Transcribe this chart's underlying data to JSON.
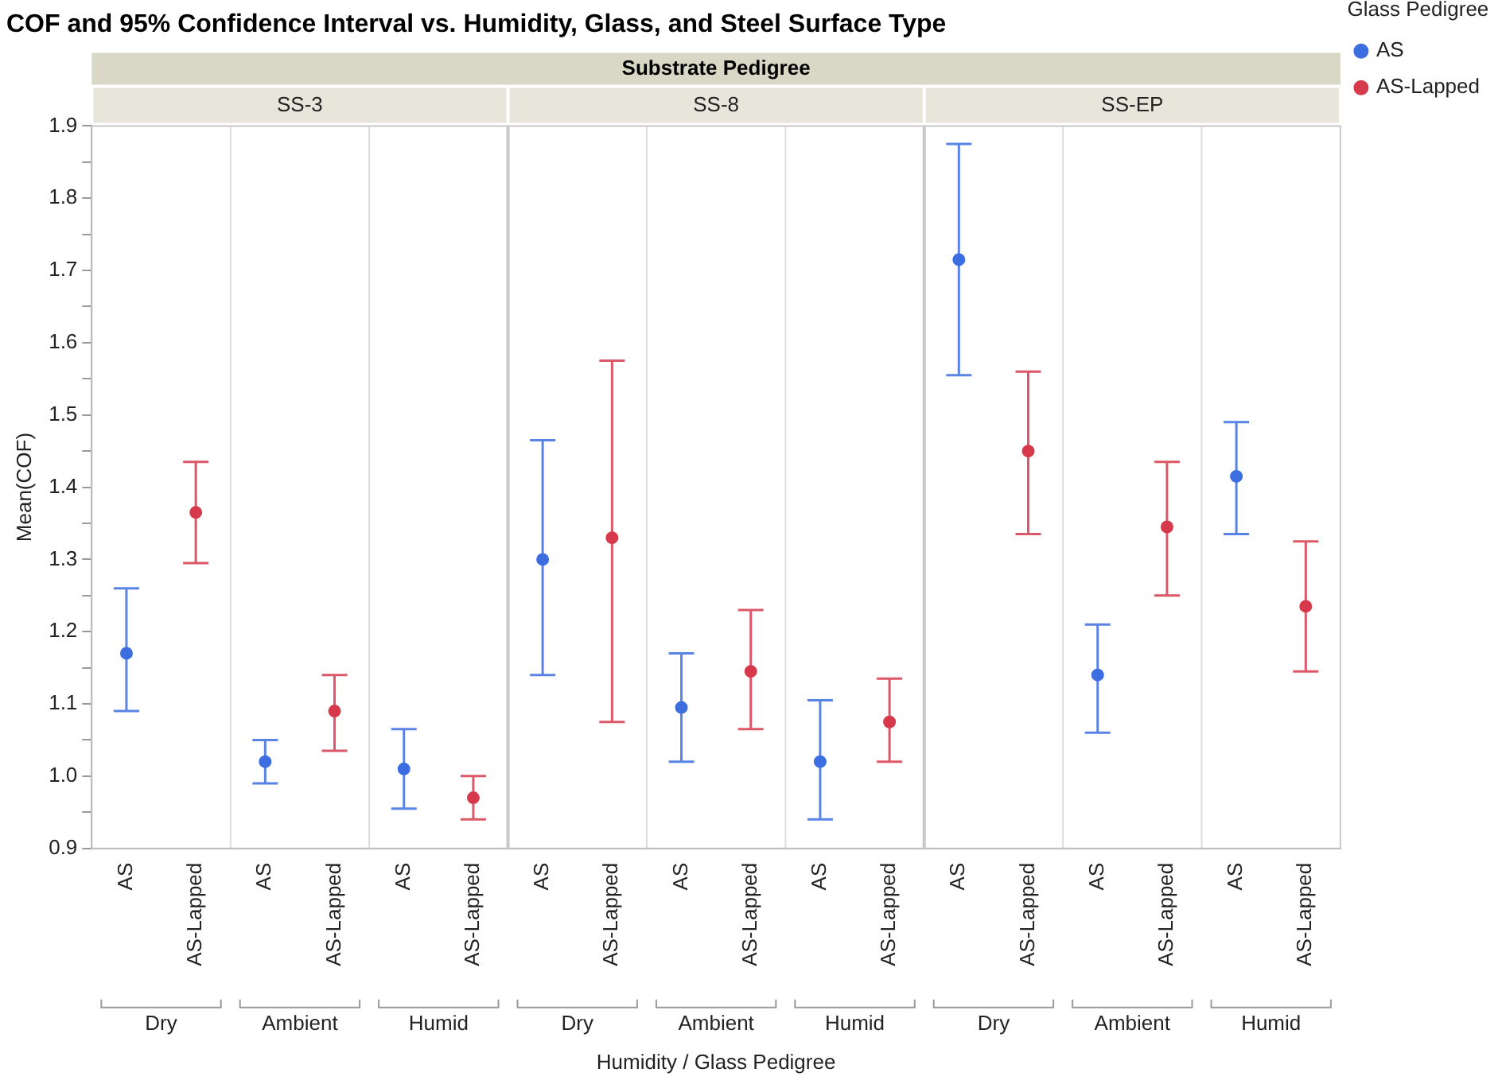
{
  "chart_data": {
    "type": "scatter",
    "title": "COF and 95% Confidence Interval vs. Humidity, Glass, and Steel Surface Type",
    "xlabel": "Humidity / Glass Pedigree",
    "ylabel": "Mean(COF)",
    "legend_title": "Glass Pedigree",
    "legend": "top right",
    "marker": "circle",
    "grid": false,
    "annotations": [
      "Substrate Pedigree",
      "SS-3",
      "SS-8",
      "SS-EP",
      "Dry",
      "Ambient",
      "Humid",
      "Dry",
      "Ambient",
      "Humid",
      "Dry",
      "Ambient",
      "Humid"
    ],
    "categories": [
      "AS",
      "AS-Lapped",
      "AS",
      "AS-Lapped",
      "AS",
      "AS-Lapped",
      "AS",
      "AS-Lapped",
      "AS",
      "AS-Lapped",
      "AS",
      "AS-Lapped",
      "AS",
      "AS-Lapped",
      "AS",
      "AS-Lapped",
      "AS",
      "AS-Lapped"
    ],
    "ylim": [
      0.9,
      1.9
    ],
    "yticks": [
      0.9,
      {
        "value": 0.95,
        "label": null
      },
      {
        "value": 1,
        "label": "1.0"
      },
      {
        "value": 1.05,
        "label": null
      },
      1.1,
      {
        "value": 1.15,
        "label": null
      },
      1.2,
      {
        "value": 1.25,
        "label": null
      },
      1.3,
      {
        "value": 1.35,
        "label": null
      },
      1.4,
      {
        "value": 1.45,
        "label": null
      },
      1.5,
      {
        "value": 1.55,
        "label": null
      },
      1.6,
      {
        "value": 1.65,
        "label": null
      },
      1.7,
      {
        "value": 1.75,
        "label": null
      },
      1.8,
      {
        "value": 1.85,
        "label": null
      },
      1.9
    ],
    "series": [
      {
        "name": "AS",
        "color": "#3c6ee0",
        "values": [
          1.17,
          null,
          1.02,
          null,
          1.01,
          null,
          1.3,
          null,
          1.095,
          null,
          1.02,
          null,
          1.715,
          null,
          1.14,
          null,
          1.415,
          null
        ],
        "errors": [
          [
            1.09,
            1.26
          ],
          null,
          [
            0.99,
            1.05
          ],
          null,
          [
            0.955,
            1.065
          ],
          null,
          [
            1.14,
            1.465
          ],
          null,
          [
            1.02,
            1.17
          ],
          null,
          [
            0.94,
            1.105
          ],
          null,
          [
            1.555,
            1.875
          ],
          null,
          [
            1.06,
            1.21
          ],
          null,
          [
            1.335,
            1.49
          ],
          null
        ]
      },
      {
        "name": "AS-Lapped",
        "color": "#d63a4c",
        "values": [
          null,
          1.365,
          null,
          1.09,
          null,
          0.97,
          null,
          1.33,
          null,
          1.145,
          null,
          1.075,
          null,
          1.45,
          null,
          1.345,
          null,
          1.235
        ],
        "errors": [
          null,
          [
            1.295,
            1.435
          ],
          null,
          [
            1.035,
            1.14
          ],
          null,
          [
            0.94,
            1.0
          ],
          null,
          [
            1.075,
            1.575
          ],
          null,
          [
            1.065,
            1.23
          ],
          null,
          [
            1.02,
            1.135
          ],
          null,
          [
            1.335,
            1.56
          ],
          null,
          [
            1.25,
            1.435
          ],
          null,
          [
            1.145,
            1.325
          ]
        ]
      }
    ]
  }
}
